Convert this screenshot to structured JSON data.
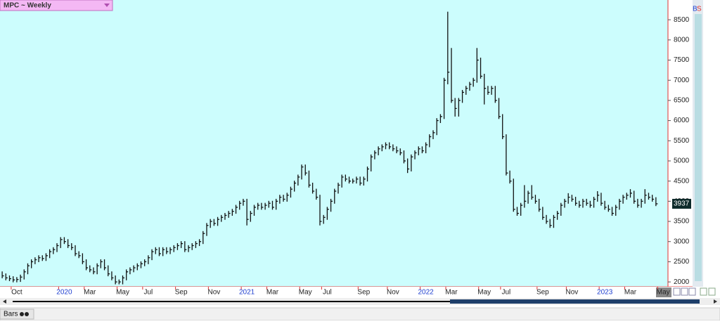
{
  "chart_data": {
    "type": "ohlc",
    "title": "MPC ~ Weekly",
    "badge": [
      "B",
      "S"
    ],
    "bottom_label": "Bars",
    "color": "#111111",
    "ylim": [
      1880,
      8990
    ],
    "yticks": [
      2000,
      2500,
      3000,
      3500,
      4000,
      4500,
      5000,
      5500,
      6000,
      6500,
      7000,
      7500,
      8000,
      8500
    ],
    "xlim": [
      -0.6,
      182.3
    ],
    "xticks": [
      {
        "value": 4,
        "label": "Oct"
      },
      {
        "value": 17,
        "label": "2020"
      },
      {
        "value": 24,
        "label": "Mar"
      },
      {
        "value": 33,
        "label": "May"
      },
      {
        "value": 40,
        "label": "Jul"
      },
      {
        "value": 49,
        "label": "Sep"
      },
      {
        "value": 58,
        "label": "Nov"
      },
      {
        "value": 67,
        "label": "2021"
      },
      {
        "value": 74,
        "label": "Mar"
      },
      {
        "value": 83,
        "label": "May"
      },
      {
        "value": 89,
        "label": "Jul"
      },
      {
        "value": 99,
        "label": "Sep"
      },
      {
        "value": 107,
        "label": "Nov"
      },
      {
        "value": 116,
        "label": "2022"
      },
      {
        "value": 123,
        "label": "Mar"
      },
      {
        "value": 132,
        "label": "May"
      },
      {
        "value": 138,
        "label": "Jul"
      },
      {
        "value": 148,
        "label": "Sep"
      },
      {
        "value": 156,
        "label": "Nov"
      },
      {
        "value": 165,
        "label": "2023"
      },
      {
        "value": 172,
        "label": "Mar"
      },
      {
        "value": 181,
        "label": "May"
      }
    ],
    "high": [
      2260,
      2210,
      2160,
      2140,
      2120,
      2180,
      2310,
      2460,
      2560,
      2610,
      2660,
      2660,
      2710,
      2810,
      2860,
      2960,
      3110,
      3110,
      3060,
      2960,
      2910,
      2760,
      2710,
      2560,
      2410,
      2360,
      2460,
      2560,
      2560,
      2410,
      2260,
      2160,
      2060,
      2160,
      2310,
      2360,
      2410,
      2460,
      2510,
      2560,
      2660,
      2810,
      2860,
      2860,
      2860,
      2860,
      2860,
      2910,
      2960,
      3010,
      3010,
      2910,
      2960,
      3010,
      3060,
      3260,
      3460,
      3560,
      3560,
      3610,
      3660,
      3710,
      3760,
      3810,
      3910,
      4010,
      4060,
      4060,
      3760,
      3910,
      3960,
      3960,
      3960,
      4010,
      4010,
      4060,
      4160,
      4160,
      4210,
      4360,
      4510,
      4660,
      4910,
      4910,
      4760,
      4460,
      4310,
      4160,
      3660,
      3860,
      4060,
      4310,
      4460,
      4660,
      4660,
      4610,
      4560,
      4610,
      4610,
      4610,
      4860,
      5160,
      5260,
      5360,
      5410,
      5460,
      5460,
      5410,
      5360,
      5310,
      5260,
      5060,
      5160,
      5260,
      5360,
      5360,
      5460,
      5660,
      5760,
      6060,
      6160,
      7060,
      8700,
      7800,
      6560,
      6560,
      6760,
      6860,
      6960,
      7060,
      7800,
      7560,
      7160,
      6860,
      6860,
      6860,
      6560,
      6160,
      5660,
      4760,
      4560,
      3860,
      3960,
      4400,
      4260,
      4400,
      4160,
      4060,
      3860,
      3660,
      3560,
      3660,
      3760,
      3960,
      4060,
      4200,
      4160,
      4110,
      4010,
      4060,
      4060,
      4010,
      4110,
      4250,
      4210,
      4010,
      3910,
      3860,
      3910,
      4060,
      4160,
      4210,
      4300,
      4260,
      4060,
      4060,
      4300,
      4210,
      4160,
      4100
    ],
    "low": [
      2090,
      2040,
      2020,
      1990,
      1990,
      2000,
      2060,
      2190,
      2340,
      2440,
      2490,
      2520,
      2520,
      2590,
      2690,
      2740,
      2840,
      2940,
      2840,
      2790,
      2640,
      2590,
      2440,
      2290,
      2240,
      2190,
      2190,
      2340,
      2290,
      2140,
      2040,
      1940,
      1940,
      1940,
      2040,
      2190,
      2240,
      2290,
      2340,
      2390,
      2440,
      2540,
      2690,
      2640,
      2640,
      2690,
      2690,
      2740,
      2790,
      2840,
      2740,
      2740,
      2790,
      2840,
      2890,
      2940,
      3140,
      3340,
      3390,
      3390,
      3490,
      3540,
      3590,
      3640,
      3690,
      3790,
      3890,
      3400,
      3490,
      3640,
      3790,
      3790,
      3790,
      3840,
      3790,
      3790,
      3940,
      3990,
      3990,
      4090,
      4240,
      4390,
      4540,
      4640,
      4340,
      4190,
      4040,
      3400,
      3440,
      3540,
      3740,
      3940,
      4190,
      4340,
      4490,
      4440,
      4440,
      4440,
      4390,
      4390,
      4490,
      4740,
      5040,
      5140,
      5240,
      5290,
      5290,
      5240,
      5190,
      5140,
      4940,
      4700,
      4740,
      5040,
      5140,
      5190,
      5190,
      5340,
      5540,
      5640,
      5940,
      6040,
      6900,
      6440,
      6100,
      6100,
      6440,
      6640,
      6740,
      6840,
      6940,
      7040,
      6400,
      6640,
      6640,
      6440,
      6040,
      5540,
      4640,
      4440,
      3740,
      3640,
      3640,
      3840,
      3940,
      4040,
      3940,
      3740,
      3540,
      3440,
      3340,
      3340,
      3540,
      3640,
      3840,
      3940,
      3990,
      3890,
      3840,
      3840,
      3890,
      3840,
      3840,
      3990,
      3890,
      3790,
      3740,
      3640,
      3640,
      3790,
      3940,
      4040,
      4090,
      3940,
      3840,
      3840,
      3940,
      4040,
      3990,
      3880
    ],
    "close": [
      2150,
      2100,
      2080,
      2050,
      2060,
      2120,
      2250,
      2400,
      2500,
      2550,
      2600,
      2580,
      2650,
      2750,
      2800,
      2900,
      3050,
      3000,
      2900,
      2850,
      2700,
      2650,
      2500,
      2350,
      2300,
      2250,
      2400,
      2500,
      2350,
      2200,
      2100,
      2000,
      2000,
      2100,
      2250,
      2300,
      2350,
      2400,
      2450,
      2500,
      2600,
      2750,
      2800,
      2700,
      2800,
      2750,
      2800,
      2850,
      2900,
      2950,
      2800,
      2850,
      2900,
      2950,
      3000,
      3200,
      3400,
      3500,
      3450,
      3550,
      3600,
      3650,
      3700,
      3750,
      3850,
      3950,
      4000,
      3550,
      3700,
      3850,
      3900,
      3850,
      3900,
      3950,
      3850,
      4000,
      4100,
      4050,
      4150,
      4300,
      4450,
      4600,
      4850,
      4700,
      4400,
      4250,
      4100,
      3500,
      3600,
      3800,
      4000,
      4250,
      4400,
      4600,
      4550,
      4500,
      4500,
      4550,
      4450,
      4550,
      4800,
      5100,
      5200,
      5300,
      5350,
      5400,
      5350,
      5300,
      5250,
      5200,
      5000,
      4800,
      5100,
      5200,
      5300,
      5250,
      5400,
      5600,
      5700,
      6000,
      6100,
      7000,
      7200,
      6500,
      6300,
      6500,
      6700,
      6800,
      6900,
      7000,
      7500,
      7100,
      6800,
      6700,
      6800,
      6500,
      6100,
      5600,
      4700,
      4500,
      3800,
      3700,
      3900,
      4000,
      4200,
      4100,
      4000,
      3800,
      3600,
      3500,
      3400,
      3600,
      3700,
      3900,
      4000,
      4100,
      4050,
      3950,
      3900,
      4000,
      3950,
      3900,
      4050,
      4150,
      3950,
      3850,
      3800,
      3700,
      3850,
      4000,
      4100,
      4150,
      4200,
      4000,
      3900,
      4000,
      4150,
      4100,
      4050,
      3937
    ]
  }
}
